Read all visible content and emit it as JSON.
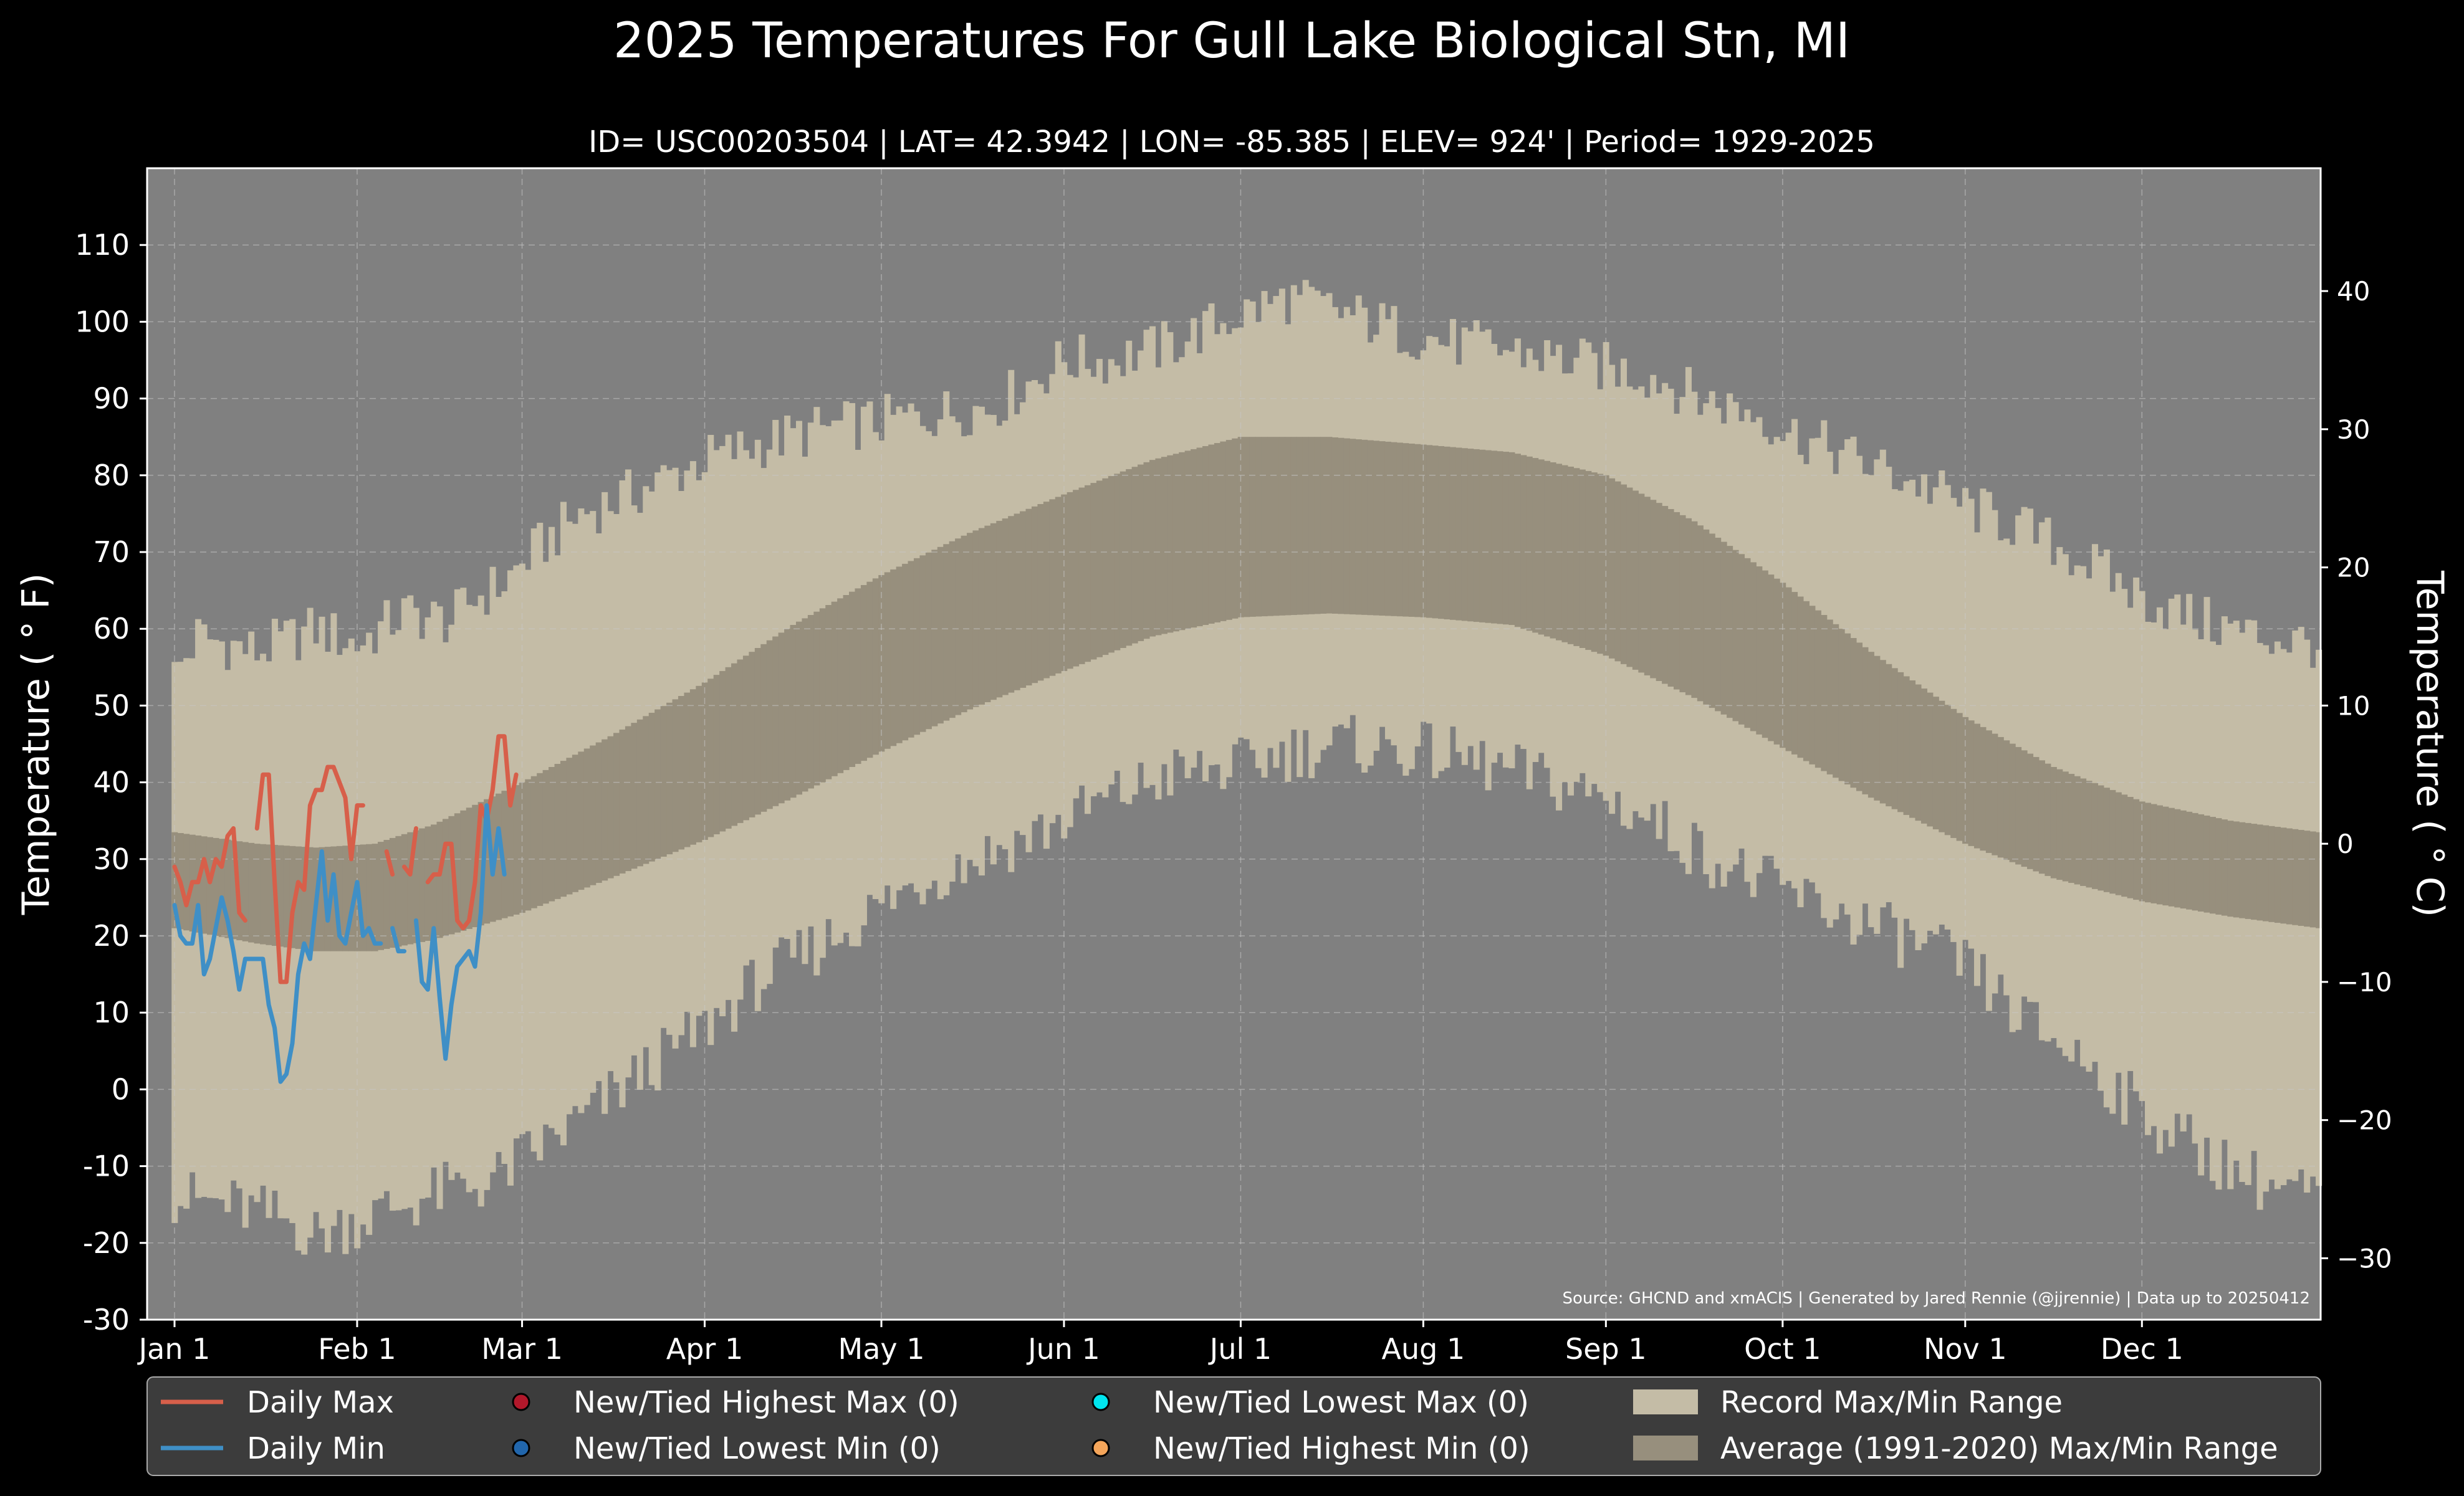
{
  "chart_data": {
    "type": "area",
    "title": "2025 Temperatures For Gull Lake Biological Stn, MI",
    "subtitle": "ID= USC00203504 | LAT= 42.3942 | LON= -85.385 | ELEV= 924' | Period= 1929-2025",
    "ylabel": "Temperature ($^\\circ$F)",
    "ylabel_display": "Temperature ( ° F)",
    "ylabel_right": "Temperature ( ° C)",
    "source": "Source: GHCND and xmACIS | Generated by Jared Rennie (@jjrennie) | Data up to 20250412",
    "ylim": [
      -30,
      120
    ],
    "yticks": [
      -30,
      -20,
      -10,
      0,
      10,
      20,
      30,
      40,
      50,
      60,
      70,
      80,
      90,
      100,
      110
    ],
    "yticks_c": [
      -30,
      -20,
      -10,
      0,
      10,
      20,
      30,
      40
    ],
    "x_ticks": [
      {
        "label": "Jan 1",
        "day": 1
      },
      {
        "label": "Feb 1",
        "day": 32
      },
      {
        "label": "Mar 1",
        "day": 60
      },
      {
        "label": "Apr 1",
        "day": 91
      },
      {
        "label": "May 1",
        "day": 121
      },
      {
        "label": "Jun 1",
        "day": 152
      },
      {
        "label": "Jul 1",
        "day": 182
      },
      {
        "label": "Aug 1",
        "day": 213
      },
      {
        "label": "Sep 1",
        "day": 244
      },
      {
        "label": "Oct 1",
        "day": 274
      },
      {
        "label": "Nov 1",
        "day": 305
      },
      {
        "label": "Dec 1",
        "day": 335
      }
    ],
    "grid": true,
    "legend_position": "bottom",
    "colors": {
      "background": "#000000",
      "plot_bg": "#808080",
      "record_range": "#c4bca6",
      "normal_range": "#978f7d",
      "daily_max": "#d75f4a",
      "daily_min": "#3f8fc6",
      "grid": "#c8c8c8",
      "legend_bg": "#3c3c3c"
    },
    "legend": [
      {
        "label": "Daily Max",
        "kind": "line",
        "color": "#d75f4a"
      },
      {
        "label": "Daily Min",
        "kind": "line",
        "color": "#3f8fc6"
      },
      {
        "label": "New/Tied Highest Max (0)",
        "kind": "dot",
        "color": "#b2182b"
      },
      {
        "label": "New/Tied Lowest Min (0)",
        "kind": "dot",
        "color": "#2166ac"
      },
      {
        "label": "New/Tied Lowest Max (0)",
        "kind": "dot",
        "color": "#00e5ee"
      },
      {
        "label": "New/Tied Highest Min (0)",
        "kind": "dot",
        "color": "#f4a55a"
      },
      {
        "label": "Record Max/Min Range",
        "kind": "patch",
        "color": "#c4bca6"
      },
      {
        "label": "Average (1991-2020) Max/Min Range",
        "kind": "patch",
        "color": "#978f7d"
      }
    ],
    "record_max_anchors": [
      [
        1,
        54
      ],
      [
        5,
        59
      ],
      [
        15,
        57
      ],
      [
        25,
        60
      ],
      [
        32,
        58
      ],
      [
        40,
        62
      ],
      [
        48,
        61
      ],
      [
        52,
        64
      ],
      [
        57,
        66
      ],
      [
        62,
        70
      ],
      [
        70,
        75
      ],
      [
        80,
        78
      ],
      [
        91,
        82
      ],
      [
        100,
        84
      ],
      [
        111,
        86
      ],
      [
        121,
        87
      ],
      [
        130,
        88
      ],
      [
        140,
        89
      ],
      [
        152,
        95
      ],
      [
        160,
        95
      ],
      [
        170,
        97
      ],
      [
        182,
        101
      ],
      [
        190,
        103
      ],
      [
        200,
        101
      ],
      [
        213,
        98
      ],
      [
        220,
        97
      ],
      [
        230,
        96
      ],
      [
        244,
        94
      ],
      [
        252,
        93
      ],
      [
        260,
        90
      ],
      [
        270,
        88
      ],
      [
        274,
        86
      ],
      [
        280,
        84
      ],
      [
        290,
        81
      ],
      [
        300,
        78
      ],
      [
        305,
        76
      ],
      [
        315,
        73
      ],
      [
        325,
        69
      ],
      [
        335,
        64
      ],
      [
        345,
        61
      ],
      [
        355,
        59
      ],
      [
        365,
        58
      ]
    ],
    "record_min_anchors": [
      [
        1,
        -14
      ],
      [
        10,
        -15
      ],
      [
        20,
        -17
      ],
      [
        25,
        -19
      ],
      [
        32,
        -17
      ],
      [
        40,
        -15
      ],
      [
        48,
        -13
      ],
      [
        55,
        -12
      ],
      [
        60,
        -9
      ],
      [
        70,
        -4
      ],
      [
        80,
        2
      ],
      [
        91,
        8
      ],
      [
        100,
        14
      ],
      [
        111,
        19
      ],
      [
        121,
        24
      ],
      [
        130,
        28
      ],
      [
        140,
        31
      ],
      [
        152,
        35
      ],
      [
        160,
        38
      ],
      [
        170,
        41
      ],
      [
        182,
        42
      ],
      [
        190,
        44
      ],
      [
        200,
        45
      ],
      [
        213,
        44
      ],
      [
        220,
        43
      ],
      [
        230,
        41
      ],
      [
        244,
        38
      ],
      [
        252,
        35
      ],
      [
        260,
        31
      ],
      [
        270,
        27
      ],
      [
        274,
        26
      ],
      [
        280,
        24
      ],
      [
        290,
        21
      ],
      [
        300,
        18
      ],
      [
        305,
        16
      ],
      [
        315,
        9
      ],
      [
        325,
        4
      ],
      [
        335,
        -3
      ],
      [
        345,
        -8
      ],
      [
        355,
        -12
      ],
      [
        365,
        -14
      ]
    ],
    "normal_max": [
      [
        1,
        33.5
      ],
      [
        15,
        32
      ],
      [
        25,
        31.5
      ],
      [
        35,
        32
      ],
      [
        45,
        34.5
      ],
      [
        60,
        40
      ],
      [
        75,
        46
      ],
      [
        91,
        53
      ],
      [
        106,
        60.5
      ],
      [
        121,
        67
      ],
      [
        136,
        72.5
      ],
      [
        152,
        77.5
      ],
      [
        167,
        82
      ],
      [
        182,
        85
      ],
      [
        197,
        85
      ],
      [
        213,
        84
      ],
      [
        228,
        83
      ],
      [
        244,
        80
      ],
      [
        259,
        74
      ],
      [
        274,
        66
      ],
      [
        289,
        57
      ],
      [
        305,
        48.5
      ],
      [
        320,
        42
      ],
      [
        335,
        37.5
      ],
      [
        350,
        35
      ],
      [
        365,
        33.5
      ]
    ],
    "normal_min": [
      [
        1,
        21
      ],
      [
        15,
        19
      ],
      [
        25,
        18
      ],
      [
        35,
        18
      ],
      [
        45,
        19.5
      ],
      [
        60,
        23
      ],
      [
        75,
        27.5
      ],
      [
        91,
        32.5
      ],
      [
        106,
        38
      ],
      [
        121,
        44
      ],
      [
        136,
        49.5
      ],
      [
        152,
        54.5
      ],
      [
        167,
        59
      ],
      [
        182,
        61.5
      ],
      [
        197,
        62
      ],
      [
        213,
        61.5
      ],
      [
        228,
        60.5
      ],
      [
        244,
        56.5
      ],
      [
        259,
        51
      ],
      [
        274,
        44.5
      ],
      [
        289,
        38
      ],
      [
        305,
        32
      ],
      [
        320,
        27.5
      ],
      [
        335,
        24.5
      ],
      [
        350,
        22.5
      ],
      [
        365,
        21
      ]
    ],
    "series": [
      {
        "name": "Daily Max",
        "x": [
          1,
          2,
          3,
          4,
          5,
          6,
          7,
          8,
          9,
          10,
          11,
          12,
          13,
          14,
          15,
          16,
          17,
          18,
          19,
          20,
          21,
          22,
          23,
          24,
          25,
          26,
          27,
          28,
          29,
          30,
          31,
          32,
          33,
          34,
          35,
          36,
          37,
          38,
          39,
          40,
          41,
          42,
          43,
          44,
          45,
          46,
          47,
          48,
          49,
          50,
          51,
          52,
          53,
          54,
          55,
          56,
          57,
          58,
          59
        ],
        "values": [
          29,
          27,
          24,
          27,
          27,
          30,
          27,
          30,
          29,
          33,
          34,
          23,
          22,
          null,
          34,
          41,
          41,
          27,
          14,
          14,
          23,
          27,
          26,
          37,
          39,
          39,
          42,
          42,
          40,
          38,
          30,
          37,
          37,
          null,
          null,
          null,
          31,
          28,
          null,
          29,
          28,
          34,
          null,
          27,
          28,
          28,
          32,
          32,
          22,
          21,
          22,
          27,
          37,
          35,
          39,
          46,
          46,
          37,
          41
        ]
      },
      {
        "name": "Daily Min",
        "x": [
          1,
          2,
          3,
          4,
          5,
          6,
          7,
          8,
          9,
          10,
          11,
          12,
          13,
          14,
          15,
          16,
          17,
          18,
          19,
          20,
          21,
          22,
          23,
          24,
          25,
          26,
          27,
          28,
          29,
          30,
          31,
          32,
          33,
          34,
          35,
          36,
          37,
          38,
          39,
          40,
          41,
          42,
          43,
          44,
          45,
          46,
          47,
          48,
          49,
          50,
          51,
          52,
          53,
          54,
          55,
          56,
          57,
          58,
          59
        ],
        "values": [
          24,
          20,
          19,
          19,
          24,
          15,
          17,
          21,
          25,
          22,
          18,
          13,
          17,
          17,
          17,
          17,
          11,
          8,
          1,
          2,
          6,
          15,
          19,
          17,
          24,
          31,
          22,
          28,
          20,
          19,
          23,
          27,
          20,
          21,
          19,
          19,
          null,
          21,
          18,
          18,
          null,
          22,
          14,
          13,
          21,
          12,
          4,
          11,
          16,
          17,
          18,
          16,
          23,
          37,
          28,
          34,
          28,
          null,
          null
        ]
      }
    ]
  }
}
